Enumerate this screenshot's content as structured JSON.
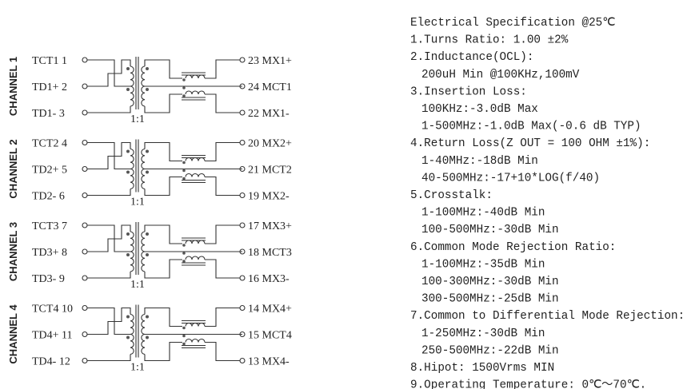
{
  "channels": [
    {
      "name": "CHANNEL  1",
      "left": [
        "TCT1 1",
        "TD1+ 2",
        "TD1-  3"
      ],
      "right": [
        "23 MX1+",
        "24 MCT1",
        "22 MX1-"
      ],
      "ratio": "1:1"
    },
    {
      "name": "CHANNEL  2",
      "left": [
        "TCT2 4",
        "TD2+ 5",
        "TD2-  6"
      ],
      "right": [
        "20 MX2+",
        "21 MCT2",
        "19 MX2-"
      ],
      "ratio": "1:1"
    },
    {
      "name": "CHANNEL  3",
      "left": [
        "TCT3 7",
        "TD3+ 8",
        "TD3-  9"
      ],
      "right": [
        "17 MX3+",
        "18 MCT3",
        "16 MX3-"
      ],
      "ratio": "1:1"
    },
    {
      "name": "CHANNEL  4",
      "left": [
        "TCT4 10",
        "TD4+ 11",
        "TD4-  12"
      ],
      "right": [
        "14 MX4+",
        "15 MCT4",
        "13 MX4-"
      ],
      "ratio": "1:1"
    }
  ],
  "spec": [
    {
      "text": "Electrical Specification @25℃",
      "indent": false
    },
    {
      "text": "1.Turns Ratio:  1.00  ±2%",
      "indent": false
    },
    {
      "text": "2.Inductance(OCL):",
      "indent": false
    },
    {
      "text": "200uH Min @100KHz,100mV",
      "indent": true
    },
    {
      "text": "3.Insertion Loss:",
      "indent": false
    },
    {
      "text": "100KHz:-3.0dB Max",
      "indent": true
    },
    {
      "text": "1-500MHz:-1.0dB Max(-0.6 dB TYP)",
      "indent": true
    },
    {
      "text": "4.Return Loss(Z OUT = 100 OHM ±1%):",
      "indent": false
    },
    {
      "text": "1-40MHz:-18dB Min",
      "indent": true
    },
    {
      "text": "40-500MHz:-17+10*LOG(f/40)",
      "indent": true
    },
    {
      "text": "5.Crosstalk:",
      "indent": false
    },
    {
      "text": "1-100MHz:-40dB Min",
      "indent": true
    },
    {
      "text": "100-500MHz:-30dB Min",
      "indent": true
    },
    {
      "text": "6.Common Mode Rejection Ratio:",
      "indent": false
    },
    {
      "text": "1-100MHz:-35dB Min",
      "indent": true
    },
    {
      "text": "100-300MHz:-30dB Min",
      "indent": true
    },
    {
      "text": "300-500MHz:-25dB Min",
      "indent": true
    },
    {
      "text": "7.Common to Differential Mode Rejection:",
      "indent": false
    },
    {
      "text": "1-250MHz:-30dB Min",
      "indent": true
    },
    {
      "text": "250-500MHz:-22dB Min",
      "indent": true
    },
    {
      "text": "8.Hipot: 1500Vrms MIN",
      "indent": false
    },
    {
      "text": "9.Operating Temperature: 0℃～70℃.",
      "indent": false
    }
  ]
}
